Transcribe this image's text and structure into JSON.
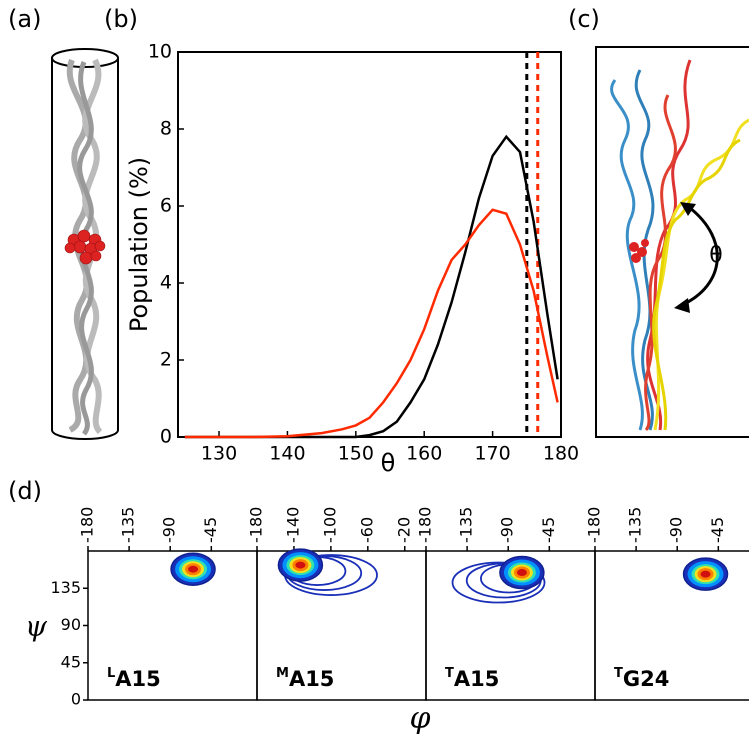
{
  "panel_labels": [
    "(a)",
    "(b)",
    "(c)",
    "(d)"
  ],
  "panel_c": {
    "angle_label": "θ"
  },
  "chart_data": [
    {
      "type": "line",
      "ylabel": "Population (%)",
      "xlabel": "θ",
      "x": [
        125,
        130,
        135,
        140,
        145,
        148,
        150,
        152,
        154,
        156,
        158,
        160,
        162,
        164,
        166,
        168,
        170,
        172,
        174,
        176,
        178,
        179.5
      ],
      "series": [
        {
          "color": "#000000",
          "values": [
            0,
            0,
            0,
            0,
            0,
            0,
            0,
            0.05,
            0.15,
            0.4,
            0.9,
            1.5,
            2.4,
            3.5,
            4.8,
            6.2,
            7.3,
            7.8,
            7.4,
            5.6,
            3.2,
            1.5
          ]
        },
        {
          "color": "#ff2a00",
          "values": [
            0,
            0,
            0,
            0.02,
            0.1,
            0.2,
            0.3,
            0.5,
            0.9,
            1.4,
            2.0,
            2.8,
            3.8,
            4.6,
            5.0,
            5.5,
            5.9,
            5.8,
            5.0,
            3.8,
            2.1,
            0.9
          ]
        }
      ],
      "reference_lines": [
        {
          "x": 175.0,
          "color": "#000000"
        },
        {
          "x": 176.6,
          "color": "#ff2a00"
        }
      ],
      "xlim": [
        124,
        180
      ],
      "xticks": [
        130,
        140,
        150,
        160,
        170,
        180
      ],
      "ylim": [
        0,
        10
      ],
      "yticks": [
        0,
        2,
        4,
        6,
        8,
        10
      ],
      "grid": false
    },
    {
      "type": "contour",
      "xlabel": "φ",
      "ylabel": "ψ",
      "ylim": [
        0,
        180
      ],
      "yticks": [
        0,
        45,
        90,
        135
      ],
      "panels": [
        {
          "label_sup": "L",
          "label": "A15",
          "xlim": [
            -180,
            5
          ],
          "xticks": [
            -180,
            -135,
            -90,
            -45
          ],
          "peak_x": -65,
          "peak_y": 158
        },
        {
          "label_sup": "M",
          "label": "A15",
          "xlim": [
            -180,
            3
          ],
          "xticks": [
            -180,
            -140,
            -100,
            -60,
            -20
          ],
          "peak_x": -133,
          "peak_y": 163
        },
        {
          "label_sup": "T",
          "label": "A15",
          "xlim": [
            -180,
            5
          ],
          "xticks": [
            -180,
            -135,
            -90,
            -45
          ],
          "peak_x": -75,
          "peak_y": 154
        },
        {
          "label_sup": "T",
          "label": "G24",
          "xlim": [
            -180,
            5
          ],
          "xticks": [
            -180,
            -135,
            -90,
            -45
          ],
          "peak_x": -59,
          "peak_y": 152
        }
      ]
    }
  ]
}
